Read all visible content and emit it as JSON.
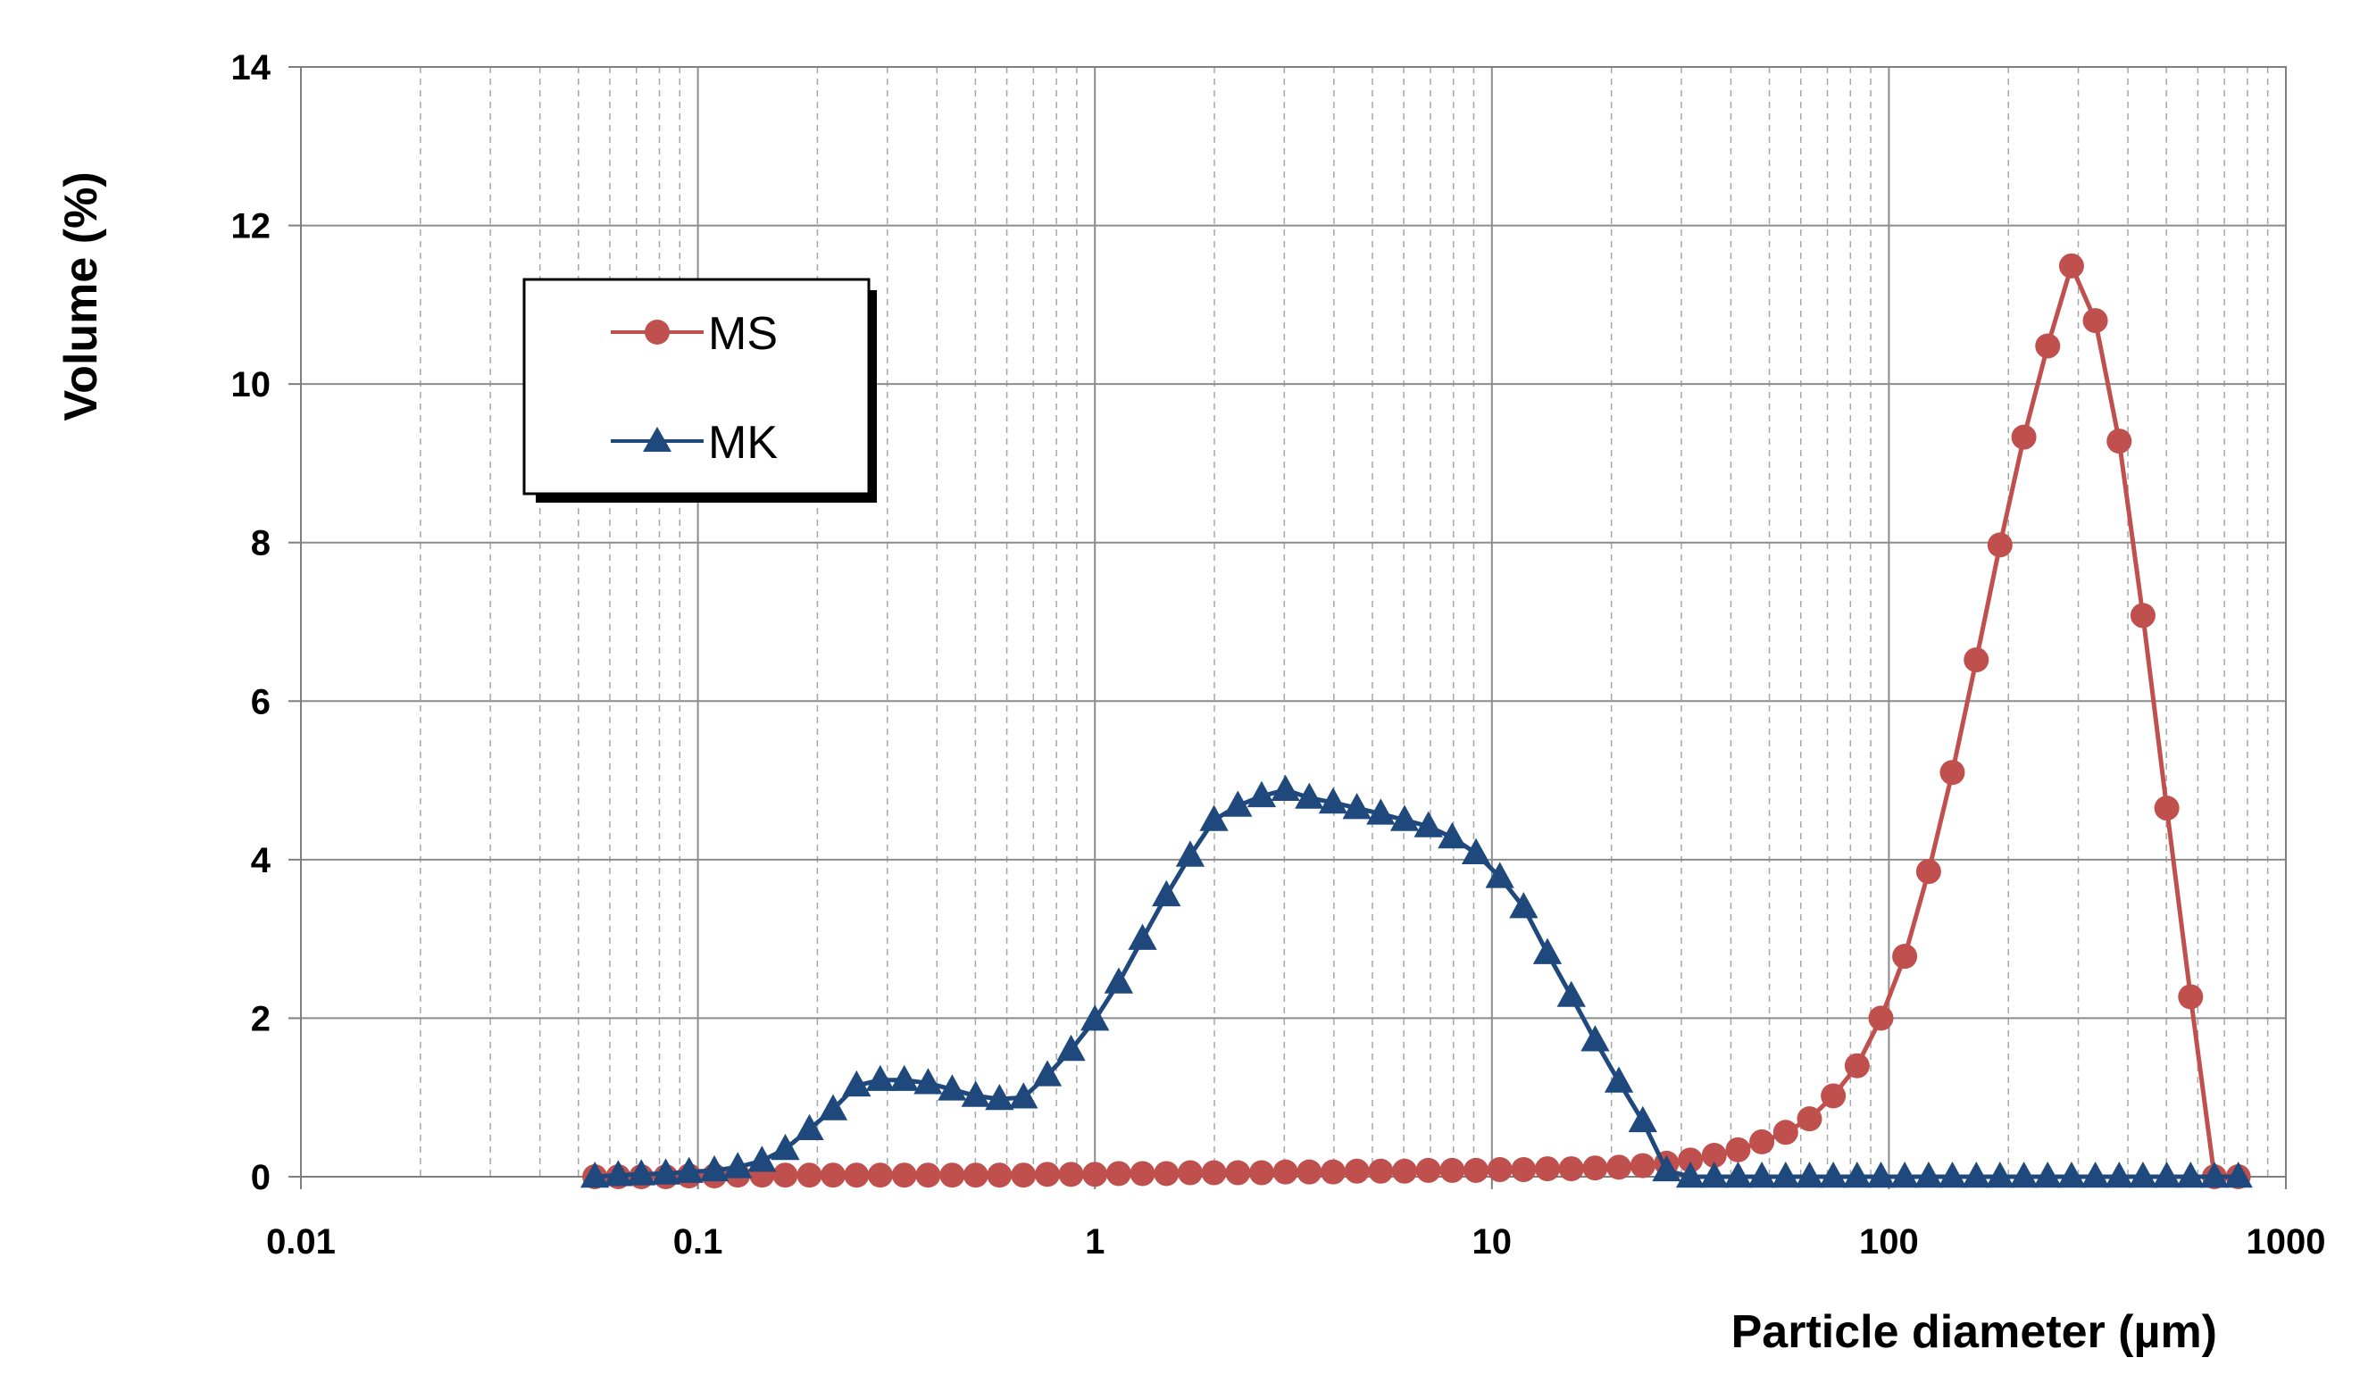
{
  "chart_data": {
    "type": "line",
    "xlabel": "Particle diameter (µm)",
    "ylabel": "Volume (%)",
    "x_scale": "log",
    "xlim": [
      0.01,
      1000
    ],
    "ylim": [
      0,
      14
    ],
    "x_tick_labels": [
      "0.01",
      "0.1",
      "1",
      "10",
      "100",
      "1000"
    ],
    "y_tick_labels": [
      "0",
      "2",
      "4",
      "6",
      "8",
      "10",
      "12",
      "14"
    ],
    "grid": true,
    "legend_position": "top-left",
    "series": [
      {
        "name": "MS",
        "color": "#c0504d",
        "marker": "circle",
        "x": [
          0.055,
          0.063,
          0.072,
          0.083,
          0.095,
          0.11,
          0.126,
          0.145,
          0.166,
          0.191,
          0.219,
          0.251,
          0.288,
          0.331,
          0.38,
          0.437,
          0.501,
          0.575,
          0.661,
          0.759,
          0.871,
          1.0,
          1.148,
          1.318,
          1.514,
          1.738,
          1.995,
          2.291,
          2.63,
          3.02,
          3.467,
          3.981,
          4.571,
          5.248,
          6.026,
          6.918,
          7.943,
          9.12,
          10.47,
          12.02,
          13.8,
          15.85,
          18.2,
          20.89,
          23.99,
          27.54,
          31.62,
          36.31,
          41.69,
          47.86,
          54.95,
          63.1,
          72.44,
          83.18,
          95.5,
          109.6,
          125.9,
          144.5,
          166.0,
          190.5,
          218.8,
          251.2,
          288.4,
          331.1,
          380.2,
          436.5,
          501.2,
          575.4,
          660.7,
          758.6
        ],
        "values": [
          0,
          0,
          0,
          0,
          0.01,
          0.01,
          0.02,
          0.02,
          0.02,
          0.02,
          0.02,
          0.02,
          0.02,
          0.02,
          0.02,
          0.02,
          0.02,
          0.02,
          0.02,
          0.03,
          0.03,
          0.03,
          0.04,
          0.04,
          0.04,
          0.05,
          0.05,
          0.05,
          0.05,
          0.06,
          0.06,
          0.06,
          0.07,
          0.07,
          0.07,
          0.08,
          0.08,
          0.08,
          0.09,
          0.09,
          0.1,
          0.1,
          0.11,
          0.12,
          0.14,
          0.17,
          0.21,
          0.27,
          0.34,
          0.44,
          0.56,
          0.73,
          1.02,
          1.4,
          2.0,
          2.78,
          3.85,
          5.1,
          6.52,
          7.97,
          9.33,
          10.48,
          11.49,
          10.8,
          9.28,
          7.08,
          4.65,
          2.27,
          0,
          0
        ]
      },
      {
        "name": "MK",
        "color": "#1f497d",
        "marker": "triangle",
        "x": [
          0.055,
          0.063,
          0.072,
          0.083,
          0.095,
          0.11,
          0.126,
          0.145,
          0.166,
          0.191,
          0.219,
          0.251,
          0.288,
          0.331,
          0.38,
          0.437,
          0.501,
          0.575,
          0.661,
          0.759,
          0.871,
          1.0,
          1.148,
          1.318,
          1.514,
          1.738,
          1.995,
          2.291,
          2.63,
          3.02,
          3.467,
          3.981,
          4.571,
          5.248,
          6.026,
          6.918,
          7.943,
          9.12,
          10.47,
          12.02,
          13.8,
          15.85,
          18.2,
          20.89,
          23.99,
          27.54,
          31.62,
          36.31,
          41.69,
          47.86,
          54.95,
          63.1,
          72.44,
          83.18,
          95.5,
          109.6,
          125.9,
          144.5,
          166.0,
          190.5,
          218.8,
          251.2,
          288.4,
          331.1,
          380.2,
          436.5,
          501.2,
          575.4,
          660.7,
          758.6
        ],
        "values": [
          0,
          0.02,
          0.03,
          0.04,
          0.06,
          0.08,
          0.12,
          0.2,
          0.35,
          0.6,
          0.85,
          1.15,
          1.22,
          1.22,
          1.18,
          1.1,
          1.02,
          0.98,
          1.0,
          1.28,
          1.6,
          1.98,
          2.45,
          3.0,
          3.55,
          4.05,
          4.5,
          4.68,
          4.8,
          4.88,
          4.78,
          4.72,
          4.65,
          4.58,
          4.5,
          4.42,
          4.28,
          4.08,
          3.78,
          3.4,
          2.82,
          2.28,
          1.72,
          1.2,
          0.7,
          0.08,
          0,
          0,
          0,
          0,
          0,
          0,
          0,
          0,
          0,
          0,
          0,
          0,
          0,
          0,
          0,
          0,
          0,
          0,
          0,
          0,
          0,
          0,
          0,
          0
        ]
      }
    ]
  }
}
